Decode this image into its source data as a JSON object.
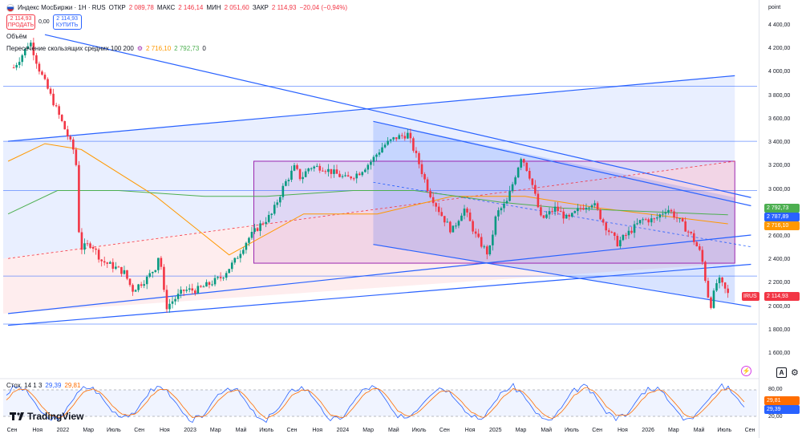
{
  "header": {
    "symbol_title": "Индекс МосБиржи · 1H · RUS",
    "ohlc": [
      {
        "key": "ОТКР",
        "value": "2 089,78"
      },
      {
        "key": "МАКС",
        "value": "2 146,14"
      },
      {
        "key": "МИН",
        "value": "2 051,60"
      },
      {
        "key": "ЗАКР",
        "value": "2 114,93"
      },
      {
        "key": "",
        "value": "−20,04 (−0,94%)"
      }
    ],
    "sell_price": "2 114,93",
    "sell_label": "ПРОДАТЬ",
    "spread": "0,00",
    "buy_price": "2 114,93",
    "buy_label": "КУПИТЬ",
    "volume_label": "Объём",
    "ma_label": "Пересечение скользящих средних 100 200",
    "ma_fast_value": "2 716,10",
    "ma_slow_value": "2 792,73",
    "ma_suffix": "0"
  },
  "axis": {
    "unit_label": "point",
    "y_ticks": [
      "4 400,00",
      "4 200,00",
      "4 000,00",
      "3 800,00",
      "3 600,00",
      "3 400,00",
      "3 200,00",
      "3 000,00",
      "2 800,00",
      "2 600,00",
      "2 400,00",
      "2 200,00",
      "2 000,00",
      "1 800,00",
      "1 600,00"
    ],
    "x_ticks": [
      "Сен",
      "Ноя",
      "2022",
      "Мар",
      "Июль",
      "Сен",
      "Ноя",
      "2023",
      "Мар",
      "Май",
      "Июль",
      "Сен",
      "Ноя",
      "2024",
      "Мар",
      "Май",
      "Июль",
      "Сен",
      "Ноя",
      "2025",
      "Мар",
      "Май",
      "Июль",
      "Сен",
      "Ноя",
      "2026",
      "Мар",
      "Май",
      "Июль",
      "Сен"
    ],
    "stoch_ticks": [
      "80,00",
      "20,00"
    ]
  },
  "price_tags": [
    {
      "label": "2 792,73",
      "color": "#4caf50"
    },
    {
      "label": "2 787,89",
      "color": "#2962ff"
    },
    {
      "label": "2 716,10",
      "color": "#ff9800"
    },
    {
      "label": "2 114,93",
      "color": "#f23645"
    }
  ],
  "irus_label": "IRUS",
  "stoch": {
    "label": "Стох. 14 1 3",
    "k_value": "29,39",
    "d_value": "29,81",
    "k_tag": "29,39",
    "d_tag": "29,81"
  },
  "brand": "TradingView",
  "controls": {
    "auto_scale": "A",
    "settings_icon": "gear-icon",
    "alert_icon": "lightning-icon"
  },
  "colors": {
    "up": "#089981",
    "down": "#f23645",
    "ma_fast": "#ff9800",
    "ma_slow": "#4caf50",
    "channel": "#2962ff",
    "box": "#9c27b0"
  },
  "chart_data": {
    "type": "candlestick",
    "y_range": [
      1600,
      4450
    ],
    "x_range": [
      "2021-09",
      "2026-09"
    ],
    "close_series": [
      [
        "2021-09-15",
        4050
      ],
      [
        "2021-10-10",
        4180
      ],
      [
        "2021-10-25",
        4280
      ],
      [
        "2021-11-15",
        4050
      ],
      [
        "2021-12-10",
        3850
      ],
      [
        "2022-01-10",
        3600
      ],
      [
        "2022-01-28",
        3450
      ],
      [
        "2022-02-15",
        3300
      ],
      [
        "2022-02-25",
        2500
      ],
      [
        "2022-03-25",
        2550
      ],
      [
        "2022-04-20",
        2400
      ],
      [
        "2022-05-20",
        2350
      ],
      [
        "2022-06-15",
        2300
      ],
      [
        "2022-07-05",
        2150
      ],
      [
        "2022-08-10",
        2250
      ],
      [
        "2022-09-01",
        2350
      ],
      [
        "2022-09-10",
        2480
      ],
      [
        "2022-09-25",
        2000
      ],
      [
        "2022-10-10",
        2050
      ],
      [
        "2022-11-10",
        2150
      ],
      [
        "2022-12-10",
        2150
      ],
      [
        "2023-01-10",
        2200
      ],
      [
        "2023-02-10",
        2260
      ],
      [
        "2023-03-15",
        2400
      ],
      [
        "2023-04-15",
        2580
      ],
      [
        "2023-05-15",
        2700
      ],
      [
        "2023-06-15",
        2800
      ],
      [
        "2023-07-15",
        3050
      ],
      [
        "2023-08-10",
        3200
      ],
      [
        "2023-08-25",
        3100
      ],
      [
        "2023-09-15",
        3200
      ],
      [
        "2023-10-15",
        3200
      ],
      [
        "2023-11-15",
        3150
      ],
      [
        "2023-12-15",
        3100
      ],
      [
        "2024-01-15",
        3150
      ],
      [
        "2024-02-15",
        3250
      ],
      [
        "2024-03-15",
        3380
      ],
      [
        "2024-04-15",
        3450
      ],
      [
        "2024-05-15",
        3480
      ],
      [
        "2024-06-10",
        3250
      ],
      [
        "2024-07-05",
        3000
      ],
      [
        "2024-08-05",
        2800
      ],
      [
        "2024-09-01",
        2650
      ],
      [
        "2024-10-01",
        2850
      ],
      [
        "2024-11-01",
        2600
      ],
      [
        "2024-12-01",
        2450
      ],
      [
        "2024-12-20",
        2800
      ],
      [
        "2025-01-15",
        2900
      ],
      [
        "2025-02-20",
        3300
      ],
      [
        "2025-03-15",
        3100
      ],
      [
        "2025-04-10",
        2750
      ],
      [
        "2025-05-15",
        2850
      ],
      [
        "2025-06-15",
        2750
      ],
      [
        "2025-07-15",
        2850
      ],
      [
        "2025-08-15",
        2900
      ],
      [
        "2025-09-15",
        2700
      ],
      [
        "2025-10-15",
        2550
      ],
      [
        "2025-11-15",
        2650
      ],
      [
        "2025-12-15",
        2750
      ],
      [
        "2026-01-15",
        2750
      ],
      [
        "2026-02-15",
        2850
      ],
      [
        "2026-03-15",
        2750
      ],
      [
        "2026-04-15",
        2620
      ],
      [
        "2026-05-10",
        2450
      ],
      [
        "2026-06-01",
        2000
      ],
      [
        "2026-06-20",
        2250
      ],
      [
        "2026-07-15",
        2115
      ]
    ],
    "moving_average_100": [
      [
        "2021-09-01",
        3250
      ],
      [
        "2021-12-01",
        3400
      ],
      [
        "2022-03-01",
        3350
      ],
      [
        "2022-09-01",
        2950
      ],
      [
        "2023-03-01",
        2450
      ],
      [
        "2023-09-01",
        2800
      ],
      [
        "2024-03-01",
        2800
      ],
      [
        "2024-09-01",
        2950
      ],
      [
        "2025-03-01",
        2950
      ],
      [
        "2025-09-01",
        2850
      ],
      [
        "2026-07-15",
        2716.1
      ]
    ],
    "moving_average_200": [
      [
        "2021-09-01",
        2800
      ],
      [
        "2022-01-01",
        3000
      ],
      [
        "2022-06-01",
        3000
      ],
      [
        "2023-01-01",
        2950
      ],
      [
        "2023-06-01",
        2950
      ],
      [
        "2024-01-01",
        3000
      ],
      [
        "2024-06-01",
        3000
      ],
      [
        "2025-01-01",
        2900
      ],
      [
        "2025-06-01",
        2850
      ],
      [
        "2026-07-15",
        2792.73
      ]
    ],
    "horizontal_levels": [
      3890,
      3420,
      3000,
      2270,
      1860
    ],
    "rectangle": {
      "from": "2023-05-01",
      "to": "2026-08-01",
      "high": 3250,
      "low": 2380
    },
    "stochastic": {
      "k_last": 29.39,
      "d_last": 29.81,
      "upper": 80,
      "lower": 20
    }
  }
}
